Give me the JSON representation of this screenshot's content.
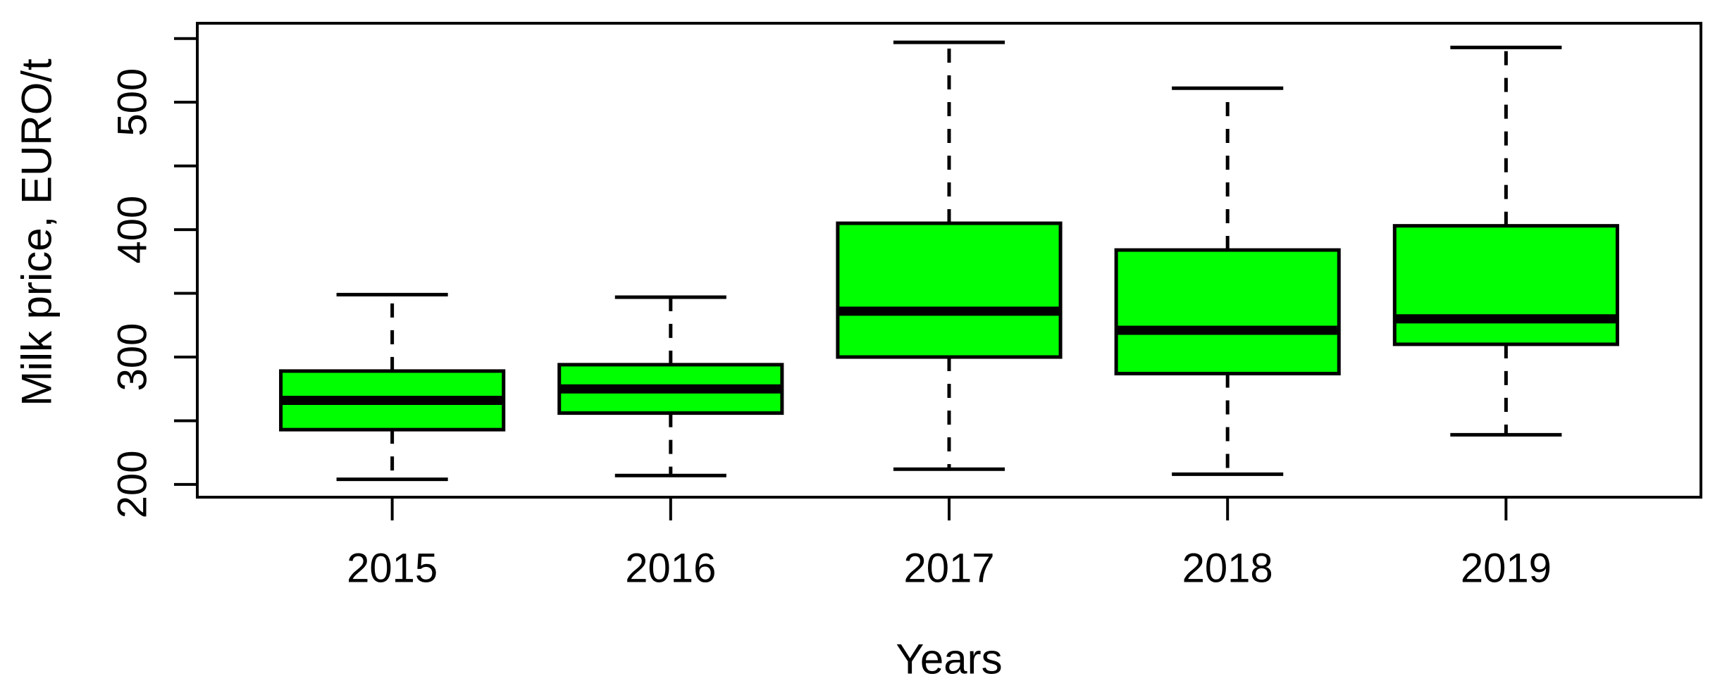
{
  "chart_data": {
    "type": "boxplot",
    "title": "",
    "xlabel": "Years",
    "ylabel": "Milk price, EURO/t",
    "categories": [
      "2015",
      "2016",
      "2017",
      "2018",
      "2019"
    ],
    "series": [
      {
        "year": "2015",
        "whisker_low": 204,
        "q1": 243,
        "median": 266,
        "q3": 289,
        "whisker_high": 349,
        "outliers": []
      },
      {
        "year": "2016",
        "whisker_low": 207,
        "q1": 256,
        "median": 275,
        "q3": 294,
        "whisker_high": 347,
        "outliers": []
      },
      {
        "year": "2017",
        "whisker_low": 212,
        "q1": 300,
        "median": 336,
        "q3": 405,
        "whisker_high": 547,
        "outliers": []
      },
      {
        "year": "2018",
        "whisker_low": 208,
        "q1": 287,
        "median": 321,
        "q3": 384,
        "whisker_high": 511,
        "outliers": []
      },
      {
        "year": "2019",
        "whisker_low": 239,
        "q1": 310,
        "median": 330,
        "q3": 403,
        "whisker_high": 543,
        "outliers": []
      }
    ],
    "y_axis": {
      "ylim": [
        190,
        562
      ],
      "tick_values": [
        200,
        250,
        300,
        350,
        400,
        450,
        500,
        550
      ],
      "tick_label_values": [
        200,
        300,
        400,
        500
      ]
    },
    "x_axis": {
      "xlim": [
        0.3,
        5.7
      ]
    },
    "legend": "none",
    "grid": false,
    "box_fill": "#00FF00",
    "stroke": "#000000",
    "background": "#FFFFFF"
  }
}
